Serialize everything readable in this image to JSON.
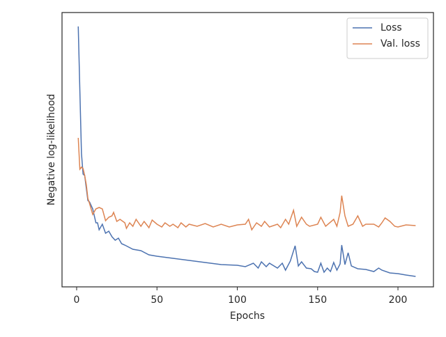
{
  "chart_data": {
    "type": "line",
    "xlabel": "Epochs",
    "ylabel": "Negative log-likelihood",
    "xlim": [
      -9.1,
      222.1
    ],
    "xticks": [
      0,
      50,
      100,
      150,
      200
    ],
    "ylim": [
      0,
      394
    ],
    "legend": "upper right",
    "series": [
      {
        "name": "Loss",
        "color": "#4c72b0",
        "x": [
          1,
          2,
          3,
          4,
          5,
          6,
          7,
          8,
          10,
          12,
          13,
          14,
          16,
          18,
          20,
          22,
          24,
          26,
          28,
          30,
          35,
          40,
          45,
          50,
          60,
          70,
          80,
          90,
          100,
          105,
          110,
          113,
          115,
          118,
          120,
          125,
          128,
          130,
          133,
          136,
          138,
          140,
          143,
          146,
          148,
          150,
          152,
          154,
          156,
          158,
          160,
          162,
          164,
          165,
          167,
          169,
          171,
          175,
          180,
          185,
          188,
          190,
          195,
          200,
          205,
          211
        ],
        "values": [
          374,
          282,
          192,
          162,
          160,
          142,
          124,
          122,
          112,
          92,
          92,
          82,
          90,
          77,
          80,
          72,
          67,
          70,
          62,
          60,
          54,
          52,
          46,
          44,
          41,
          38,
          35,
          32,
          31,
          29,
          34,
          27,
          36,
          29,
          34,
          27,
          34,
          24,
          37,
          59,
          30,
          36,
          27,
          26,
          22,
          21,
          34,
          21,
          27,
          22,
          35,
          24,
          33,
          60,
          32,
          49,
          30,
          26,
          25,
          22,
          27,
          24,
          20,
          19,
          17,
          15
        ]
      },
      {
        "name": "Val. loss",
        "color": "#dd8452",
        "x": [
          1,
          2,
          3,
          4,
          5,
          6,
          7,
          8,
          10,
          12,
          14,
          16,
          18,
          20,
          22,
          23,
          25,
          27,
          30,
          31,
          33,
          35,
          37,
          40,
          42,
          45,
          47,
          50,
          53,
          55,
          58,
          60,
          63,
          65,
          68,
          70,
          75,
          80,
          85,
          90,
          95,
          100,
          105,
          107,
          109,
          112,
          115,
          117,
          120,
          125,
          127,
          130,
          132,
          135,
          137,
          140,
          143,
          145,
          150,
          152,
          155,
          160,
          162,
          164,
          165,
          167,
          169,
          172,
          175,
          178,
          180,
          185,
          188,
          190,
          192,
          195,
          198,
          200,
          205,
          211
        ],
        "values": [
          214,
          169,
          172,
          170,
          160,
          147,
          127,
          120,
          104,
          112,
          114,
          112,
          95,
          100,
          102,
          107,
          94,
          97,
          92,
          84,
          92,
          87,
          97,
          87,
          94,
          85,
          96,
          90,
          86,
          92,
          87,
          90,
          85,
          92,
          86,
          90,
          87,
          91,
          86,
          90,
          86,
          89,
          90,
          97,
          82,
          92,
          87,
          94,
          86,
          90,
          85,
          97,
          90,
          110,
          87,
          100,
          90,
          87,
          90,
          100,
          87,
          97,
          87,
          107,
          131,
          102,
          87,
          90,
          102,
          87,
          90,
          90,
          86,
          92,
          99,
          94,
          87,
          86,
          89,
          88
        ]
      }
    ]
  }
}
